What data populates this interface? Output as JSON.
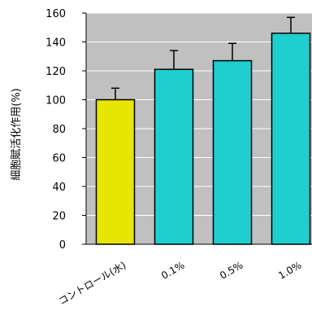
{
  "chart_data": {
    "type": "bar",
    "title": "",
    "xlabel": "",
    "ylabel": "細胞賦活化作用(%)",
    "ylim": [
      0,
      160
    ],
    "yticks": [
      0,
      20,
      40,
      60,
      80,
      100,
      120,
      140,
      160
    ],
    "grid": true,
    "categories": [
      "コントロール(水)",
      "0.1%",
      "0.5%",
      "1.0%"
    ],
    "values": [
      100,
      121,
      127,
      146
    ],
    "errors": [
      8,
      13,
      12,
      11
    ],
    "colors": {
      "plot_background": "#c0c0c0",
      "gridline": "#ffffff",
      "bars": [
        "#e6e600",
        "#1fcfcf",
        "#1fcfcf",
        "#1fcfcf"
      ],
      "bar_outline": "#000000"
    }
  }
}
